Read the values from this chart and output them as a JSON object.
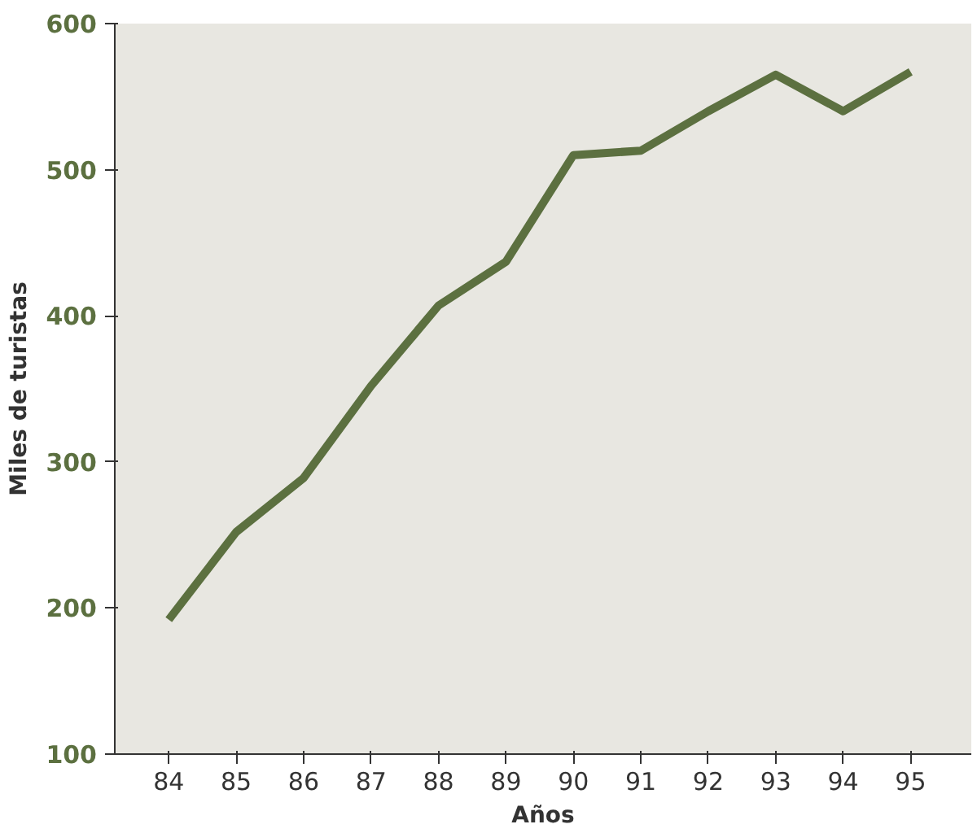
{
  "chart_data": {
    "type": "line",
    "xlabel": "Años",
    "ylabel": "Miles de turistas",
    "categories": [
      "84",
      "85",
      "86",
      "87",
      "88",
      "89",
      "90",
      "91",
      "92",
      "93",
      "94",
      "95"
    ],
    "series": [
      {
        "color": "#5c7040",
        "values": [
          192,
          252,
          289,
          352,
          407,
          437,
          510,
          513,
          540,
          565,
          540,
          567
        ]
      }
    ],
    "ylim": [
      100,
      600
    ],
    "yticks": [
      100,
      200,
      300,
      400,
      500,
      600
    ],
    "marker": "none",
    "line_style": "solid"
  }
}
